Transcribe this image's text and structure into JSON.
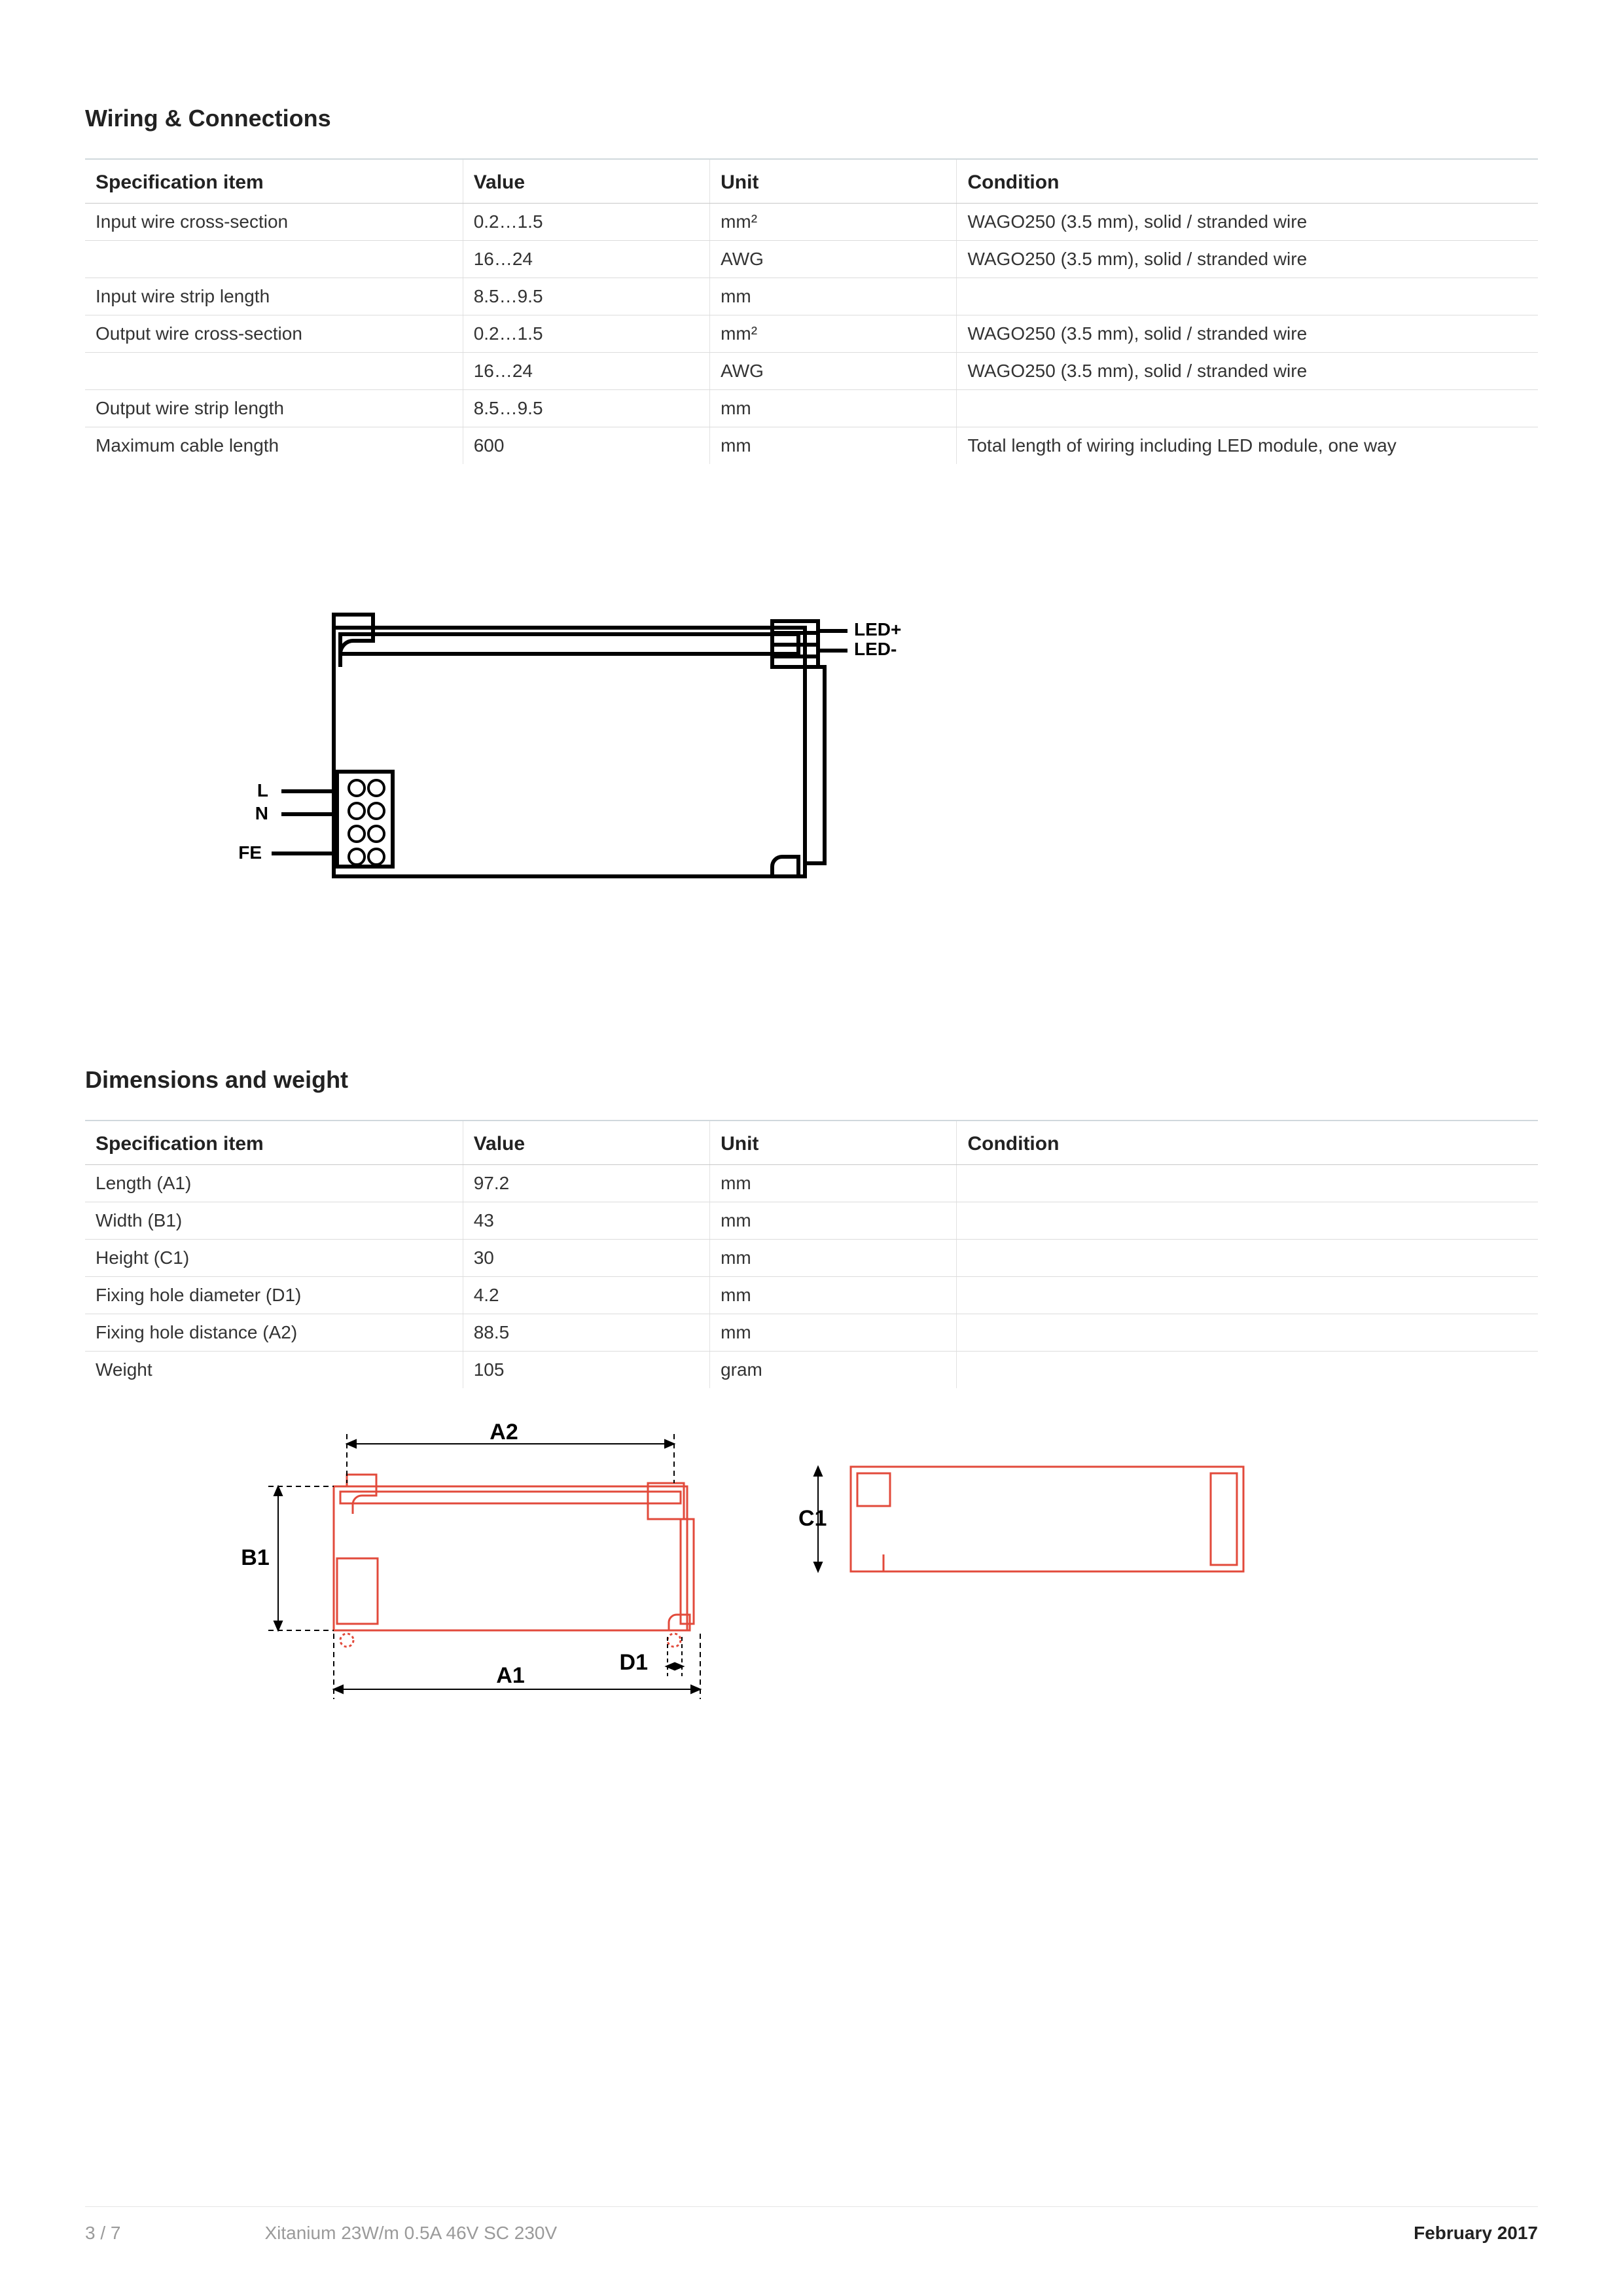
{
  "section1": {
    "title": "Wiring & Connections",
    "columns": [
      "Specification item",
      "Value",
      "Unit",
      "Condition"
    ],
    "rows": [
      [
        "Input wire cross-section",
        "0.2…1.5",
        "mm²",
        "WAGO250 (3.5 mm), solid / stranded wire"
      ],
      [
        "",
        "16…24",
        "AWG",
        "WAGO250 (3.5 mm), solid / stranded wire"
      ],
      [
        "Input wire strip length",
        "8.5…9.5",
        "mm",
        ""
      ],
      [
        "Output wire cross-section",
        "0.2…1.5",
        "mm²",
        "WAGO250 (3.5 mm), solid / stranded wire"
      ],
      [
        "",
        "16…24",
        "AWG",
        "WAGO250 (3.5 mm), solid / stranded wire"
      ],
      [
        "Output wire strip length",
        "8.5…9.5",
        "mm",
        ""
      ],
      [
        "Maximum cable length",
        "600",
        "mm",
        "Total length of wiring including LED module, one way"
      ]
    ]
  },
  "wiring_diagram": {
    "labels": {
      "L": "L",
      "N": "N",
      "FE": "FE",
      "LEDp": "LED+",
      "LEDm": "LED-"
    },
    "stroke": "#000000",
    "stroke_width": 4
  },
  "section2": {
    "title": "Dimensions and weight",
    "columns": [
      "Specification item",
      "Value",
      "Unit",
      "Condition"
    ],
    "rows": [
      [
        "Length (A1)",
        "97.2",
        "mm",
        ""
      ],
      [
        "Width (B1)",
        "43",
        "mm",
        ""
      ],
      [
        "Height (C1)",
        "30",
        "mm",
        ""
      ],
      [
        "Fixing hole diameter (D1)",
        "4.2",
        "mm",
        ""
      ],
      [
        "Fixing hole distance (A2)",
        "88.5",
        "mm",
        ""
      ],
      [
        "Weight",
        "105",
        "gram",
        ""
      ]
    ]
  },
  "dim_diagram": {
    "labels": {
      "A1": "A1",
      "A2": "A2",
      "B1": "B1",
      "C1": "C1",
      "D1": "D1"
    },
    "stroke": "#e24a3b",
    "text_color": "#000000",
    "stroke_width": 2,
    "label_fontsize": 34,
    "label_fontweight": "700"
  },
  "footer": {
    "page": "3 / 7",
    "product": "Xitanium 23W/m 0.5A 46V SC 230V",
    "date": "February 2017"
  },
  "colors": {
    "rule": "#d0d8dc",
    "row_border": "#dcdcdc",
    "text": "#222222",
    "muted": "#9a9a9a"
  }
}
